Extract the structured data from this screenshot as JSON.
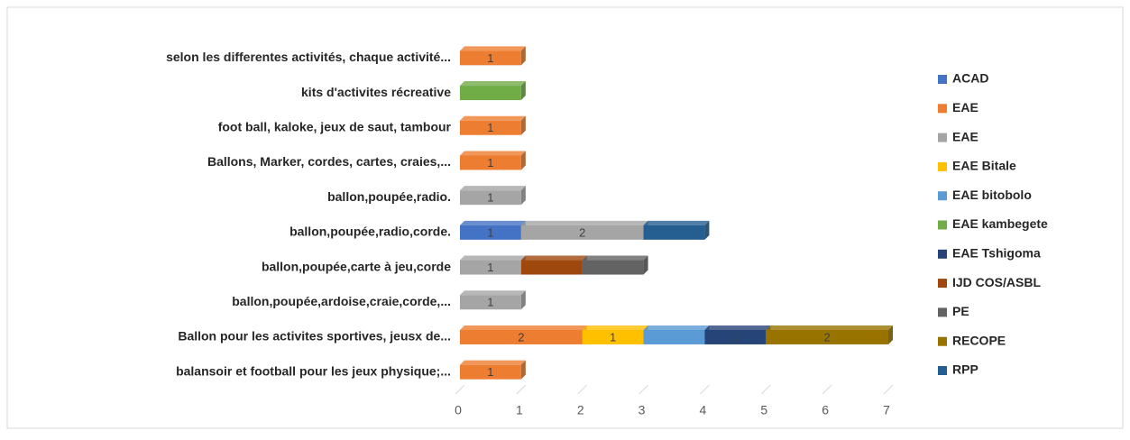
{
  "chart_data": {
    "type": "stacked-bar-horizontal",
    "categories": [
      "selon les differentes activités, chaque activité...",
      "kits d'activites récreative",
      "foot ball, kaloke, jeux de saut, tambour",
      "Ballons, Marker, cordes, cartes, craies,...",
      "ballon,poupée,radio.",
      "ballon,poupée,radio,corde.",
      "ballon,poupée,carte à jeu,corde",
      "ballon,poupée,ardoise,craie,corde,...",
      "Ballon pour les activites sportives, jeusx de...",
      "balansoir et football pour les jeux physique;..."
    ],
    "series": [
      {
        "name": "ACAD",
        "color": "#4472c4",
        "data_labels": true,
        "values": [
          null,
          null,
          null,
          null,
          null,
          1,
          null,
          null,
          null,
          null
        ]
      },
      {
        "name": "EAE",
        "color": "#ed7d31",
        "data_labels": true,
        "values": [
          1,
          null,
          1,
          1,
          null,
          null,
          null,
          null,
          2,
          1
        ]
      },
      {
        "name": "EAE",
        "color": "#a5a5a5",
        "data_labels": true,
        "values": [
          null,
          null,
          null,
          null,
          1,
          2,
          1,
          1,
          null,
          null
        ]
      },
      {
        "name": "EAE Bitale",
        "color": "#ffc000",
        "data_labels": true,
        "values": [
          null,
          null,
          null,
          null,
          null,
          null,
          null,
          null,
          1,
          null
        ]
      },
      {
        "name": "EAE bitobolo",
        "color": "#5b9bd5",
        "data_labels": false,
        "values": [
          null,
          null,
          null,
          null,
          null,
          null,
          null,
          null,
          1,
          null
        ]
      },
      {
        "name": "EAE kambegete",
        "color": "#70ad47",
        "data_labels": false,
        "values": [
          null,
          1,
          null,
          null,
          null,
          null,
          null,
          null,
          null,
          null
        ]
      },
      {
        "name": "EAE Tshigoma",
        "color": "#264478",
        "data_labels": true,
        "values": [
          null,
          null,
          null,
          null,
          null,
          null,
          null,
          null,
          1,
          null
        ]
      },
      {
        "name": "IJD COS/ASBL",
        "color": "#9e480e",
        "data_labels": false,
        "values": [
          null,
          null,
          null,
          null,
          null,
          null,
          1,
          null,
          null,
          null
        ]
      },
      {
        "name": "PE",
        "color": "#636363",
        "data_labels": false,
        "values": [
          null,
          null,
          null,
          null,
          null,
          null,
          1,
          null,
          null,
          null
        ]
      },
      {
        "name": "RECOPE",
        "color": "#997300",
        "data_labels": true,
        "values": [
          null,
          null,
          null,
          null,
          null,
          null,
          null,
          null,
          2,
          null
        ]
      },
      {
        "name": "RPP",
        "color": "#255e91",
        "data_labels": false,
        "values": [
          null,
          null,
          null,
          null,
          null,
          1,
          null,
          null,
          null,
          null
        ]
      }
    ],
    "xlim": [
      0,
      7
    ],
    "xticks": [
      0,
      1,
      2,
      3,
      4,
      5,
      6,
      7
    ],
    "legend": "right"
  }
}
